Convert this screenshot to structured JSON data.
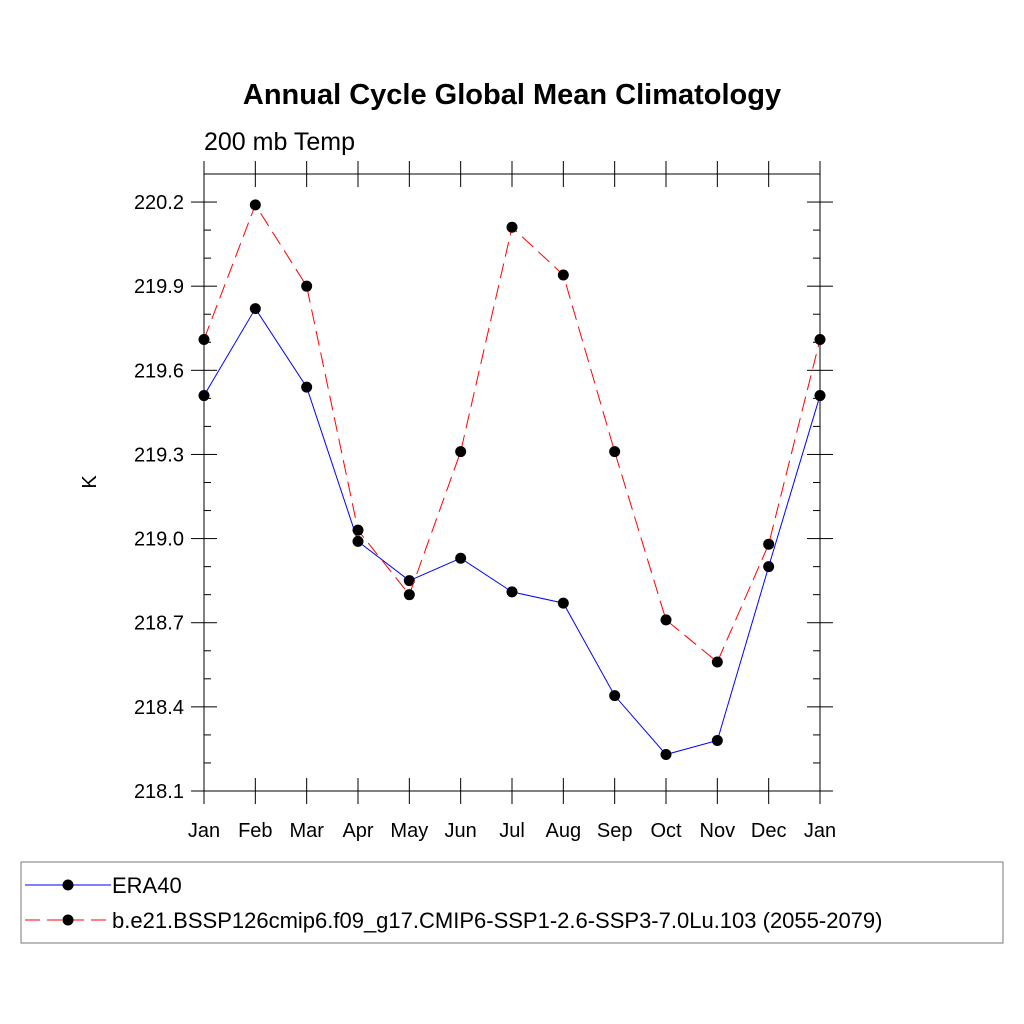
{
  "chart_data": {
    "type": "line",
    "title": "Annual Cycle Global Mean Climatology",
    "subtitle": "200 mb Temp",
    "xlabel": "",
    "ylabel": "K",
    "categories": [
      "Jan",
      "Feb",
      "Mar",
      "Apr",
      "May",
      "Jun",
      "Jul",
      "Aug",
      "Sep",
      "Oct",
      "Nov",
      "Dec",
      "Jan"
    ],
    "ylim": [
      218.1,
      220.3
    ],
    "yticks": [
      "220.2",
      "219.9",
      "219.6",
      "219.3",
      "219.0",
      "218.7",
      "218.4",
      "218.1"
    ],
    "grid": false,
    "legend_position": "bottom",
    "series": [
      {
        "name": "ERA40",
        "color": "#0000ff",
        "line_style": "solid",
        "values": [
          219.51,
          219.82,
          219.54,
          218.99,
          218.85,
          218.93,
          218.81,
          218.77,
          218.44,
          218.23,
          218.28,
          218.9,
          219.51
        ]
      },
      {
        "name": "b.e21.BSSP126cmip6.f09_g17.CMIP6-SSP1-2.6-SSP3-7.0Lu.103 (2055-2079)",
        "color": "#ff0000",
        "line_style": "dashed",
        "values": [
          219.71,
          220.19,
          219.9,
          219.03,
          218.8,
          219.31,
          220.11,
          219.94,
          219.31,
          218.71,
          218.56,
          218.98,
          219.71
        ]
      }
    ]
  }
}
